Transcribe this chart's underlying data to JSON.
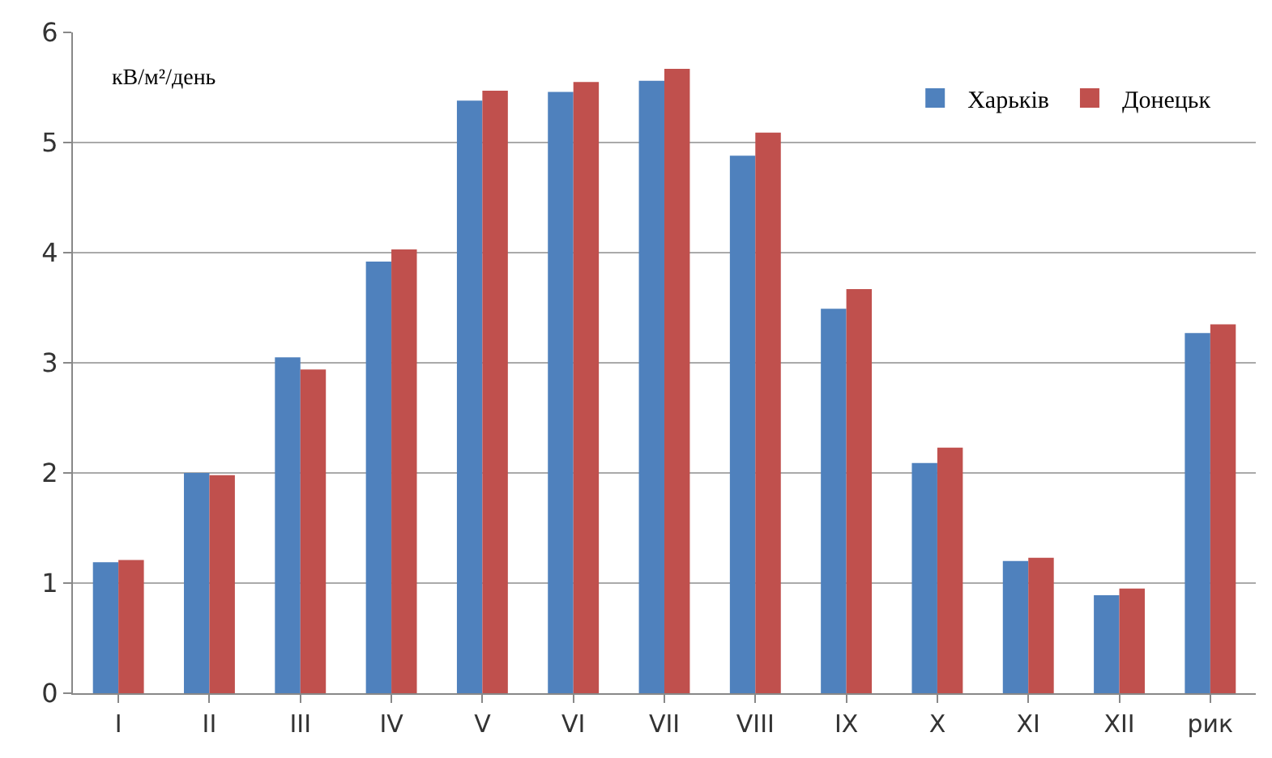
{
  "chart_data": {
    "type": "bar",
    "ylabel": "кВ/м²/день",
    "categories": [
      "I",
      "II",
      "III",
      "IV",
      "V",
      "VI",
      "VII",
      "VIII",
      "IX",
      "X",
      "XI",
      "XII",
      "рик"
    ],
    "series": [
      {
        "name": "Харьків",
        "color": "#4f81bd",
        "values": [
          1.19,
          2.0,
          3.05,
          3.92,
          5.38,
          5.46,
          5.56,
          4.88,
          3.49,
          2.09,
          1.2,
          0.89,
          3.27
        ]
      },
      {
        "name": "Донецьк",
        "color": "#c0504d",
        "values": [
          1.21,
          1.98,
          2.94,
          4.03,
          5.47,
          5.55,
          5.67,
          5.09,
          3.67,
          2.23,
          1.23,
          0.95,
          3.35
        ]
      }
    ],
    "ylim": [
      0,
      6
    ],
    "yticks": [
      0,
      1,
      2,
      3,
      4,
      5,
      6
    ],
    "grid": "y",
    "legend": "top right"
  }
}
